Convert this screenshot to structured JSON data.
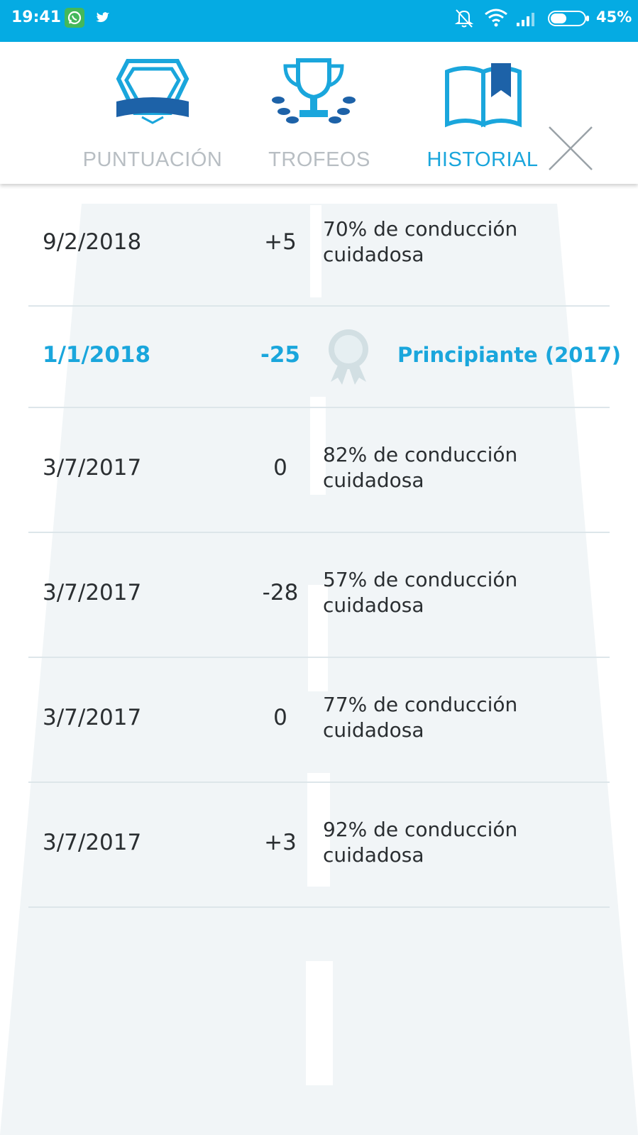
{
  "status_bar": {
    "time": "19:41",
    "battery_percent": "45%",
    "notification_icons": [
      "whatsapp-icon",
      "twitter-icon"
    ],
    "system_icons": [
      "bell-off-icon",
      "wifi-icon",
      "signal-icon",
      "battery-icon"
    ]
  },
  "tabs": [
    {
      "label": "PUNTUACIÓN",
      "icon": "shield-badge-icon",
      "active": false
    },
    {
      "label": "TROFEOS",
      "icon": "trophy-icon",
      "active": false
    },
    {
      "label": "HISTORIAL",
      "icon": "book-icon",
      "active": true
    }
  ],
  "history": [
    {
      "date": "9/2/2018",
      "points": "+5",
      "description": "70% de conducción cuidadosa",
      "type": "trip"
    },
    {
      "date": "1/1/2018",
      "points": "-25",
      "description": "Principiante (2017)",
      "type": "award"
    },
    {
      "date": "3/7/2017",
      "points": "0",
      "description": "82% de conducción cuidadosa",
      "type": "trip"
    },
    {
      "date": "3/7/2017",
      "points": "-28",
      "description": "57% de conducción cuidadosa",
      "type": "trip"
    },
    {
      "date": "3/7/2017",
      "points": "0",
      "description": "77% de conducción cuidadosa",
      "type": "trip"
    },
    {
      "date": "3/7/2017",
      "points": "+3",
      "description": "92% de conducción cuidadosa",
      "type": "trip"
    }
  ],
  "colors": {
    "status_bar": "#05abe3",
    "accent": "#1aa6dc",
    "inactive_tab": "#b8bec3",
    "icon_blue": "#1aa6dc",
    "icon_dark_blue": "#1d62a8"
  }
}
